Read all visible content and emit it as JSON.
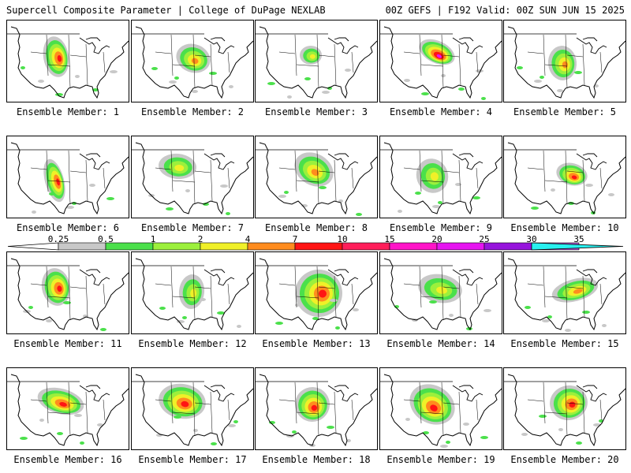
{
  "header": {
    "left": "Supercell Composite Parameter | College of DuPage NEXLAB",
    "right": "00Z GEFS | F192 Valid: 00Z SUN JUN 15 2025"
  },
  "panels": [
    {
      "label": "Ensemble Member: 1"
    },
    {
      "label": "Ensemble Member: 2"
    },
    {
      "label": "Ensemble Member: 3"
    },
    {
      "label": "Ensemble Member: 4"
    },
    {
      "label": "Ensemble Member: 5"
    },
    {
      "label": "Ensemble Member: 6"
    },
    {
      "label": "Ensemble Member: 7"
    },
    {
      "label": "Ensemble Member: 8"
    },
    {
      "label": "Ensemble Member: 9"
    },
    {
      "label": "Ensemble Member: 10"
    },
    {
      "label": "Ensemble Member: 11"
    },
    {
      "label": "Ensemble Member: 12"
    },
    {
      "label": "Ensemble Member: 13"
    },
    {
      "label": "Ensemble Member: 14"
    },
    {
      "label": "Ensemble Member: 15"
    },
    {
      "label": "Ensemble Member: 16"
    },
    {
      "label": "Ensemble Member: 17"
    },
    {
      "label": "Ensemble Member: 18"
    },
    {
      "label": "Ensemble Member: 19"
    },
    {
      "label": "Ensemble Member: 20"
    }
  ],
  "legend": {
    "ticks": [
      "0.25",
      "0.5",
      "1",
      "2",
      "4",
      "7",
      "10",
      "15",
      "20",
      "25",
      "30",
      "35"
    ],
    "colors": [
      "#c8c8c8",
      "#4be04b",
      "#9cf03c",
      "#f0f028",
      "#ff8c1e",
      "#ff1414",
      "#ff1e5a",
      "#ff14c8",
      "#e614f0",
      "#9614dc",
      "#b45adc",
      "#28f0f0"
    ]
  },
  "map_colors": {
    "gray": "#c8c8c8",
    "green": "#4be04b",
    "lime": "#9cf03c",
    "yellow": "#f0f028",
    "orange": "#ff8c1e",
    "red": "#ff1414",
    "magenta": "#e614f0"
  }
}
